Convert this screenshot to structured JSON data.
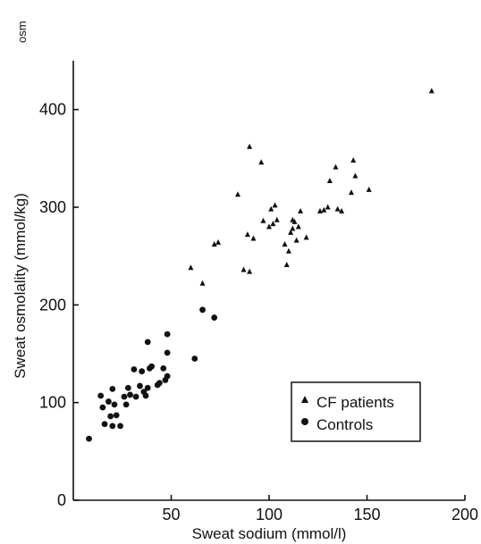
{
  "corner_label": "osm",
  "chart_data": {
    "type": "scatter",
    "title": "",
    "xlabel": "Sweat sodium (mmol/l)",
    "ylabel": "Sweat osmolality (mmol/kg)",
    "xlim": [
      0,
      200
    ],
    "ylim": [
      0,
      450
    ],
    "xticks": [
      50,
      100,
      150,
      200
    ],
    "yticks": [
      0,
      100,
      200,
      300,
      400
    ],
    "grid": false,
    "legend_position": "lower-right",
    "series": [
      {
        "name": "CF patients",
        "marker": "triangle",
        "points": [
          [
            60,
            238
          ],
          [
            66,
            222
          ],
          [
            72,
            262
          ],
          [
            74,
            264
          ],
          [
            84,
            313
          ],
          [
            87,
            236
          ],
          [
            89,
            272
          ],
          [
            90,
            362
          ],
          [
            90,
            234
          ],
          [
            92,
            268
          ],
          [
            96,
            346
          ],
          [
            97,
            286
          ],
          [
            100,
            280
          ],
          [
            101,
            298
          ],
          [
            102,
            283
          ],
          [
            103,
            302
          ],
          [
            104,
            287
          ],
          [
            108,
            262
          ],
          [
            109,
            241
          ],
          [
            110,
            255
          ],
          [
            111,
            274
          ],
          [
            112,
            278
          ],
          [
            112,
            287
          ],
          [
            113,
            285
          ],
          [
            114,
            266
          ],
          [
            115,
            280
          ],
          [
            116,
            296
          ],
          [
            119,
            269
          ],
          [
            126,
            296
          ],
          [
            128,
            297
          ],
          [
            130,
            300
          ],
          [
            131,
            327
          ],
          [
            134,
            341
          ],
          [
            135,
            298
          ],
          [
            137,
            296
          ],
          [
            142,
            315
          ],
          [
            143,
            348
          ],
          [
            144,
            332
          ],
          [
            151,
            318
          ],
          [
            183,
            419
          ]
        ]
      },
      {
        "name": "Controls",
        "marker": "circle",
        "points": [
          [
            8,
            63
          ],
          [
            14,
            107
          ],
          [
            15,
            95
          ],
          [
            16,
            78
          ],
          [
            18,
            101
          ],
          [
            19,
            86
          ],
          [
            20,
            114
          ],
          [
            20,
            76
          ],
          [
            21,
            98
          ],
          [
            22,
            87
          ],
          [
            24,
            76
          ],
          [
            26,
            106
          ],
          [
            27,
            98
          ],
          [
            28,
            115
          ],
          [
            29,
            108
          ],
          [
            31,
            134
          ],
          [
            32,
            106
          ],
          [
            34,
            117
          ],
          [
            35,
            132
          ],
          [
            36,
            111
          ],
          [
            37,
            107
          ],
          [
            38,
            162
          ],
          [
            38,
            115
          ],
          [
            39,
            135
          ],
          [
            40,
            137
          ],
          [
            43,
            118
          ],
          [
            44,
            120
          ],
          [
            46,
            135
          ],
          [
            47,
            123
          ],
          [
            48,
            127
          ],
          [
            48,
            151
          ],
          [
            48,
            170
          ],
          [
            62,
            145
          ],
          [
            66,
            195
          ],
          [
            72,
            187
          ]
        ]
      }
    ]
  }
}
